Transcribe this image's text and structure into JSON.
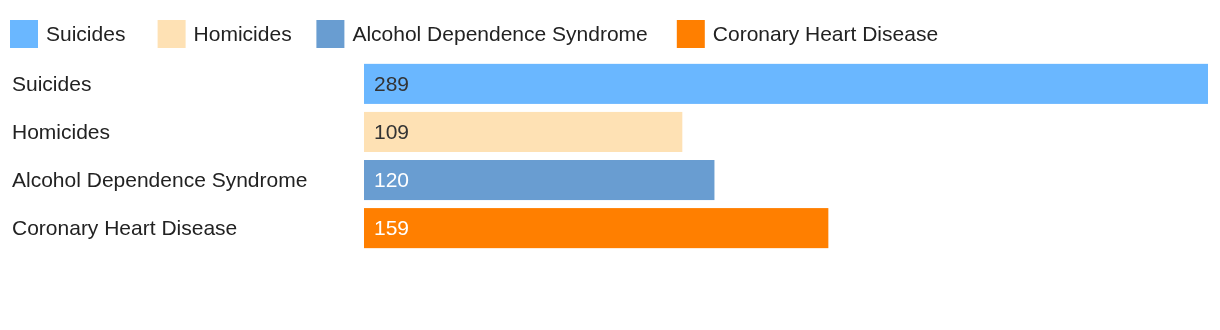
{
  "chart_data": {
    "type": "bar",
    "orientation": "horizontal",
    "stacked": true,
    "categories": [
      "Suicides",
      "Homicides",
      "Alcohol Dependence Syndrome",
      "Coronary Heart Disease"
    ],
    "series": [
      {
        "name": "Suicides",
        "color": "#6ab7ff",
        "values": [
          289,
          null,
          null,
          null
        ]
      },
      {
        "name": "Homicides",
        "color": "#fee1b4",
        "values": [
          null,
          109,
          null,
          null
        ]
      },
      {
        "name": "Alcohol Dependence Syndrome",
        "color": "#699dd1",
        "values": [
          null,
          null,
          120,
          null
        ]
      },
      {
        "name": "Coronary Heart Disease",
        "color": "#ff7f00",
        "values": [
          null,
          null,
          null,
          159
        ]
      }
    ],
    "data_labels": true,
    "legend": "top"
  }
}
